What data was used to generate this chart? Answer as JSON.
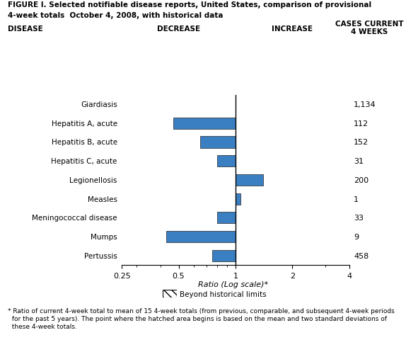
{
  "title_line1": "FIGURE I. Selected notifiable disease reports, United States, comparison of provisional",
  "title_line2": "4-week totals  October 4, 2008, with historical data",
  "diseases": [
    "Giardiasis",
    "Hepatitis A, acute",
    "Hepatitis B, acute",
    "Hepatitis C, acute",
    "Legionellosis",
    "Measles",
    "Meningococcal disease",
    "Mumps",
    "Pertussis"
  ],
  "ratios": [
    1.0,
    0.47,
    0.65,
    0.8,
    1.4,
    1.06,
    0.8,
    0.43,
    0.75
  ],
  "cases": [
    "1,134",
    "112",
    "152",
    "31",
    "200",
    "1",
    "33",
    "9",
    "458"
  ],
  "bar_color": "#3A7FC1",
  "bar_edge_color": "#222222",
  "xlim_log": [
    0.25,
    4.0
  ],
  "xticks": [
    0.25,
    0.5,
    1.0,
    2.0,
    4.0
  ],
  "xticklabels": [
    "0.25",
    "0.5",
    "1",
    "2",
    "4"
  ],
  "xlabel": "Ratio (Log scale)*",
  "col_header_disease": "DISEASE",
  "col_header_decrease": "DECREASE",
  "col_header_increase": "INCREASE",
  "col_header_cases": "CASES CURRENT\n4 WEEKS",
  "legend_label": "Beyond historical limits",
  "footnote_line1": "* Ratio of current 4-week total to mean of 15 4-week totals (from previous, comparable, and subsequent 4-week periods",
  "footnote_line2": "  for the past 5 years). The point where the hatched area begins is based on the mean and two standard deviations of",
  "footnote_line3": "  these 4-week totals.",
  "bg_color": "#ffffff"
}
